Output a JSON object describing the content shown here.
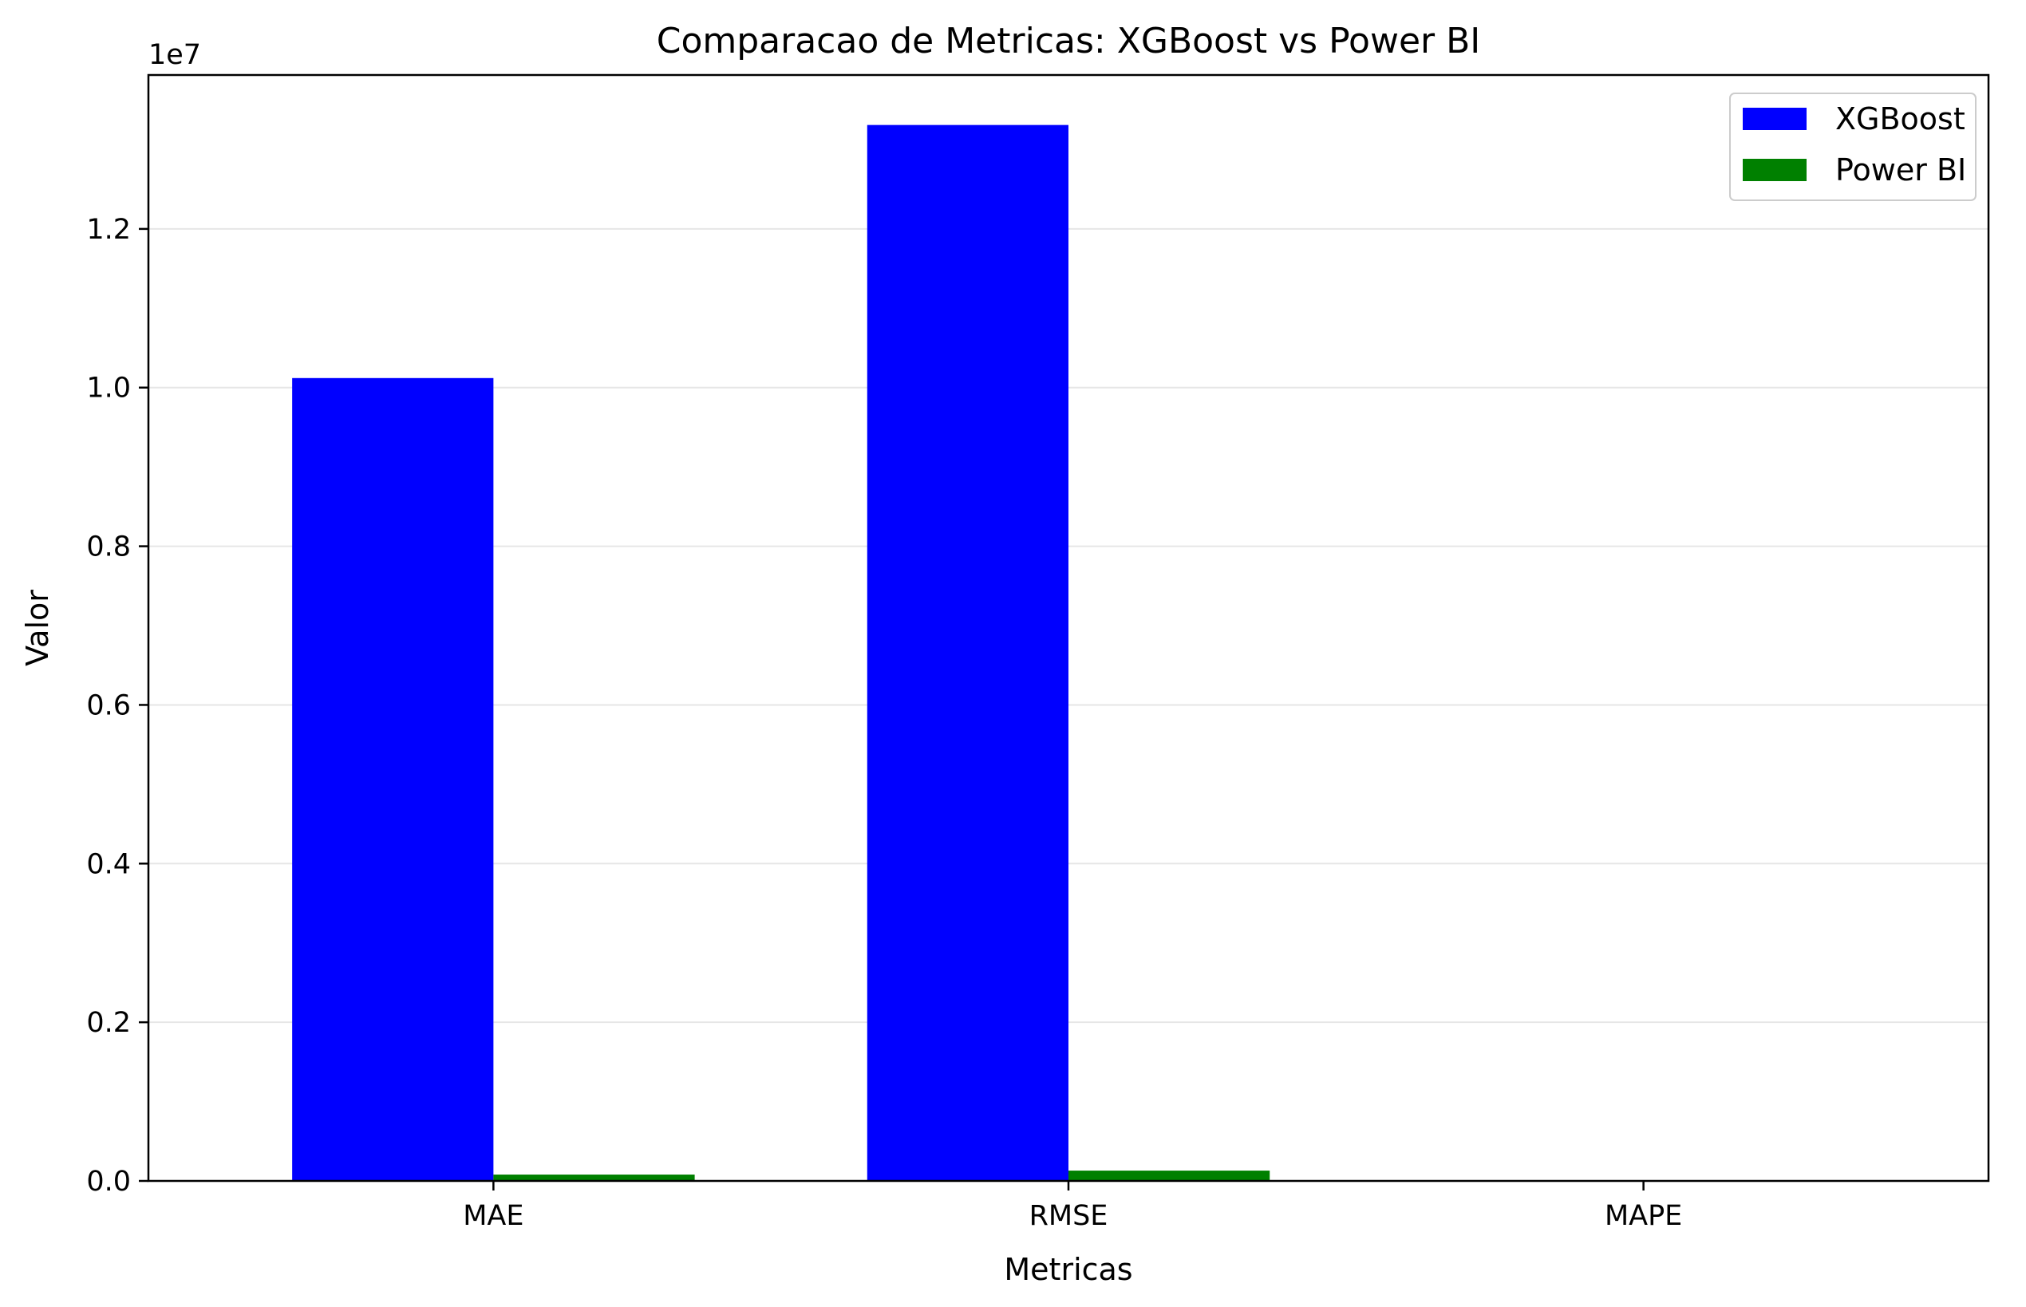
{
  "chart_data": {
    "type": "bar",
    "title": "Comparacao de Metricas: XGBoost vs Power BI",
    "xlabel": "Metricas",
    "ylabel": "Valor",
    "y_offset_text": "1e7",
    "categories": [
      "MAE",
      "RMSE",
      "MAPE"
    ],
    "series": [
      {
        "name": "XGBoost",
        "color": "#0000ff",
        "values": [
          10120000,
          13310000,
          8
        ]
      },
      {
        "name": "Power BI",
        "color": "#008000",
        "values": [
          80000,
          130000,
          5
        ]
      }
    ],
    "ylim": [
      0,
      13940000
    ],
    "yticks": [
      0,
      2000000,
      4000000,
      6000000,
      8000000,
      10000000,
      12000000
    ],
    "ytick_labels": [
      "0.0",
      "0.2",
      "0.4",
      "0.6",
      "0.8",
      "1.0",
      "1.2"
    ],
    "grid": "horizontal",
    "legend_position": "top-right"
  }
}
